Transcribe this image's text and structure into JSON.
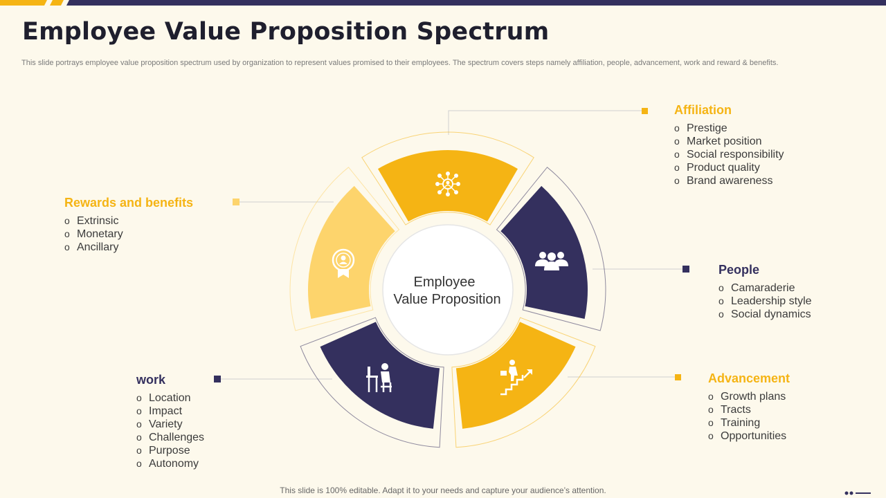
{
  "title": "Employee Value Proposition Spectrum",
  "subtitle": "This slide portrays employee value proposition spectrum used by organization to represent values promised to their employees. The spectrum covers steps namely affiliation, people, advancement, work and reward & benefits.",
  "center": {
    "line1": "Employee",
    "line2": "Value  Proposition"
  },
  "sections": {
    "affiliation": {
      "title": "Affiliation",
      "items": [
        "Prestige",
        "Market position",
        "Social responsibility",
        "Product quality",
        "Brand awareness"
      ],
      "icon": "network-people-icon"
    },
    "people": {
      "title": "People",
      "items": [
        "Camaraderie",
        "Leadership style",
        "Social dynamics"
      ],
      "icon": "team-icon"
    },
    "advancement": {
      "title": "Advancement",
      "items": [
        "Growth plans",
        "Tracts",
        "Training",
        "Opportunities"
      ],
      "icon": "career-stairs-icon"
    },
    "work": {
      "title": "work",
      "items": [
        "Location",
        "Impact",
        "Variety",
        "Challenges",
        "Purpose",
        "Autonomy"
      ],
      "icon": "desk-worker-icon"
    },
    "rewards": {
      "title": "Rewards and benefits",
      "items": [
        "Extrinsic",
        "Monetary",
        "Ancillary"
      ],
      "icon": "award-badge-icon"
    }
  },
  "footer": "This slide is 100% editable. Adapt it to your needs and capture your audience’s attention.",
  "colors": {
    "yellow": "#f5b414",
    "light_yellow": "#fdd46c",
    "navy": "#34305e",
    "background": "#fdf9ec"
  }
}
